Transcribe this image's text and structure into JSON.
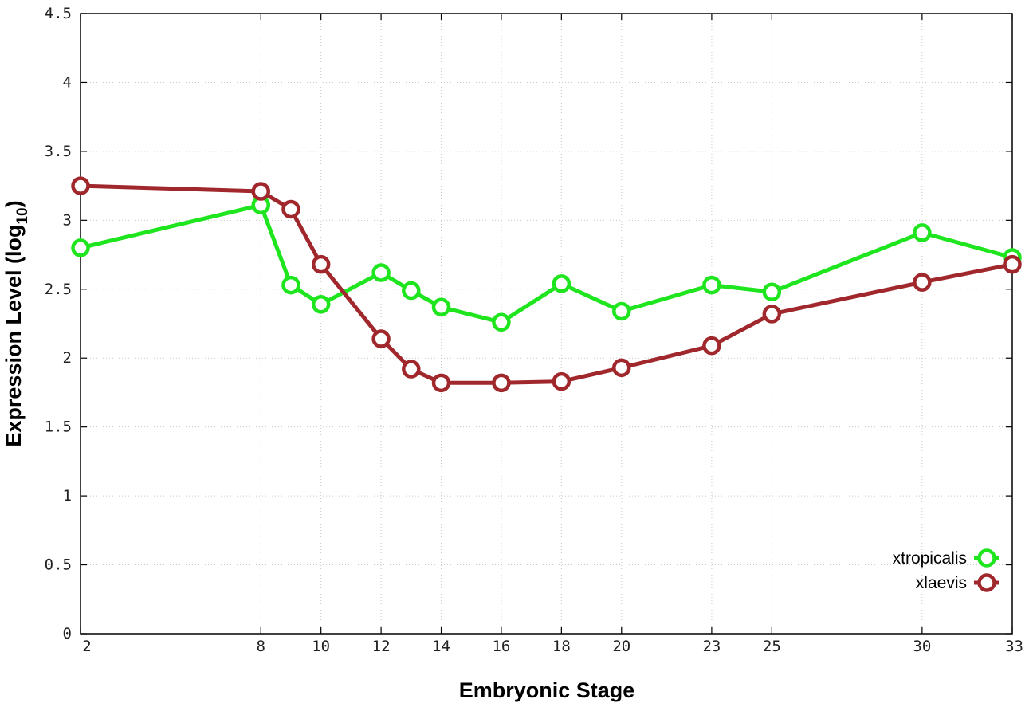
{
  "chart_data": {
    "type": "line",
    "xlabel": "Embryonic Stage",
    "ylabel": "Expression Level (log",
    "ylabel_subscript": "10",
    "ylabel_suffix": ")",
    "x_ticks": [
      "2",
      "8",
      "10",
      "12",
      "14",
      "16",
      "18",
      "20",
      "23",
      "25",
      "30",
      "33"
    ],
    "x_tick_values": [
      2,
      8,
      10,
      12,
      14,
      16,
      18,
      20,
      23,
      25,
      30,
      33
    ],
    "xlim": [
      2,
      33
    ],
    "y_ticks": [
      "0",
      "0.5",
      "1",
      "1.5",
      "2",
      "2.5",
      "3",
      "3.5",
      "4",
      "4.5"
    ],
    "y_tick_values": [
      0,
      0.5,
      1,
      1.5,
      2,
      2.5,
      3,
      3.5,
      4,
      4.5
    ],
    "ylim": [
      0,
      4.5
    ],
    "grid": true,
    "legend_position": "bottom-right",
    "series": [
      {
        "name": "xtropicalis",
        "color": "#1ee51e",
        "points": [
          {
            "x": 2,
            "y": 2.8
          },
          {
            "x": 8,
            "y": 3.11
          },
          {
            "x": 9,
            "y": 2.53
          },
          {
            "x": 10,
            "y": 2.39
          },
          {
            "x": 12,
            "y": 2.62
          },
          {
            "x": 13,
            "y": 2.49
          },
          {
            "x": 14,
            "y": 2.37
          },
          {
            "x": 16,
            "y": 2.26
          },
          {
            "x": 18,
            "y": 2.54
          },
          {
            "x": 20,
            "y": 2.34
          },
          {
            "x": 23,
            "y": 2.53
          },
          {
            "x": 25,
            "y": 2.48
          },
          {
            "x": 30,
            "y": 2.91
          },
          {
            "x": 33,
            "y": 2.73
          }
        ]
      },
      {
        "name": "xlaevis",
        "color": "#a0282c",
        "points": [
          {
            "x": 2,
            "y": 3.25
          },
          {
            "x": 8,
            "y": 3.21
          },
          {
            "x": 9,
            "y": 3.08
          },
          {
            "x": 10,
            "y": 2.68
          },
          {
            "x": 12,
            "y": 2.14
          },
          {
            "x": 13,
            "y": 1.92
          },
          {
            "x": 14,
            "y": 1.82
          },
          {
            "x": 16,
            "y": 1.82
          },
          {
            "x": 18,
            "y": 1.83
          },
          {
            "x": 20,
            "y": 1.93
          },
          {
            "x": 23,
            "y": 2.09
          },
          {
            "x": 25,
            "y": 2.32
          },
          {
            "x": 30,
            "y": 2.55
          },
          {
            "x": 33,
            "y": 2.68
          }
        ]
      }
    ]
  }
}
